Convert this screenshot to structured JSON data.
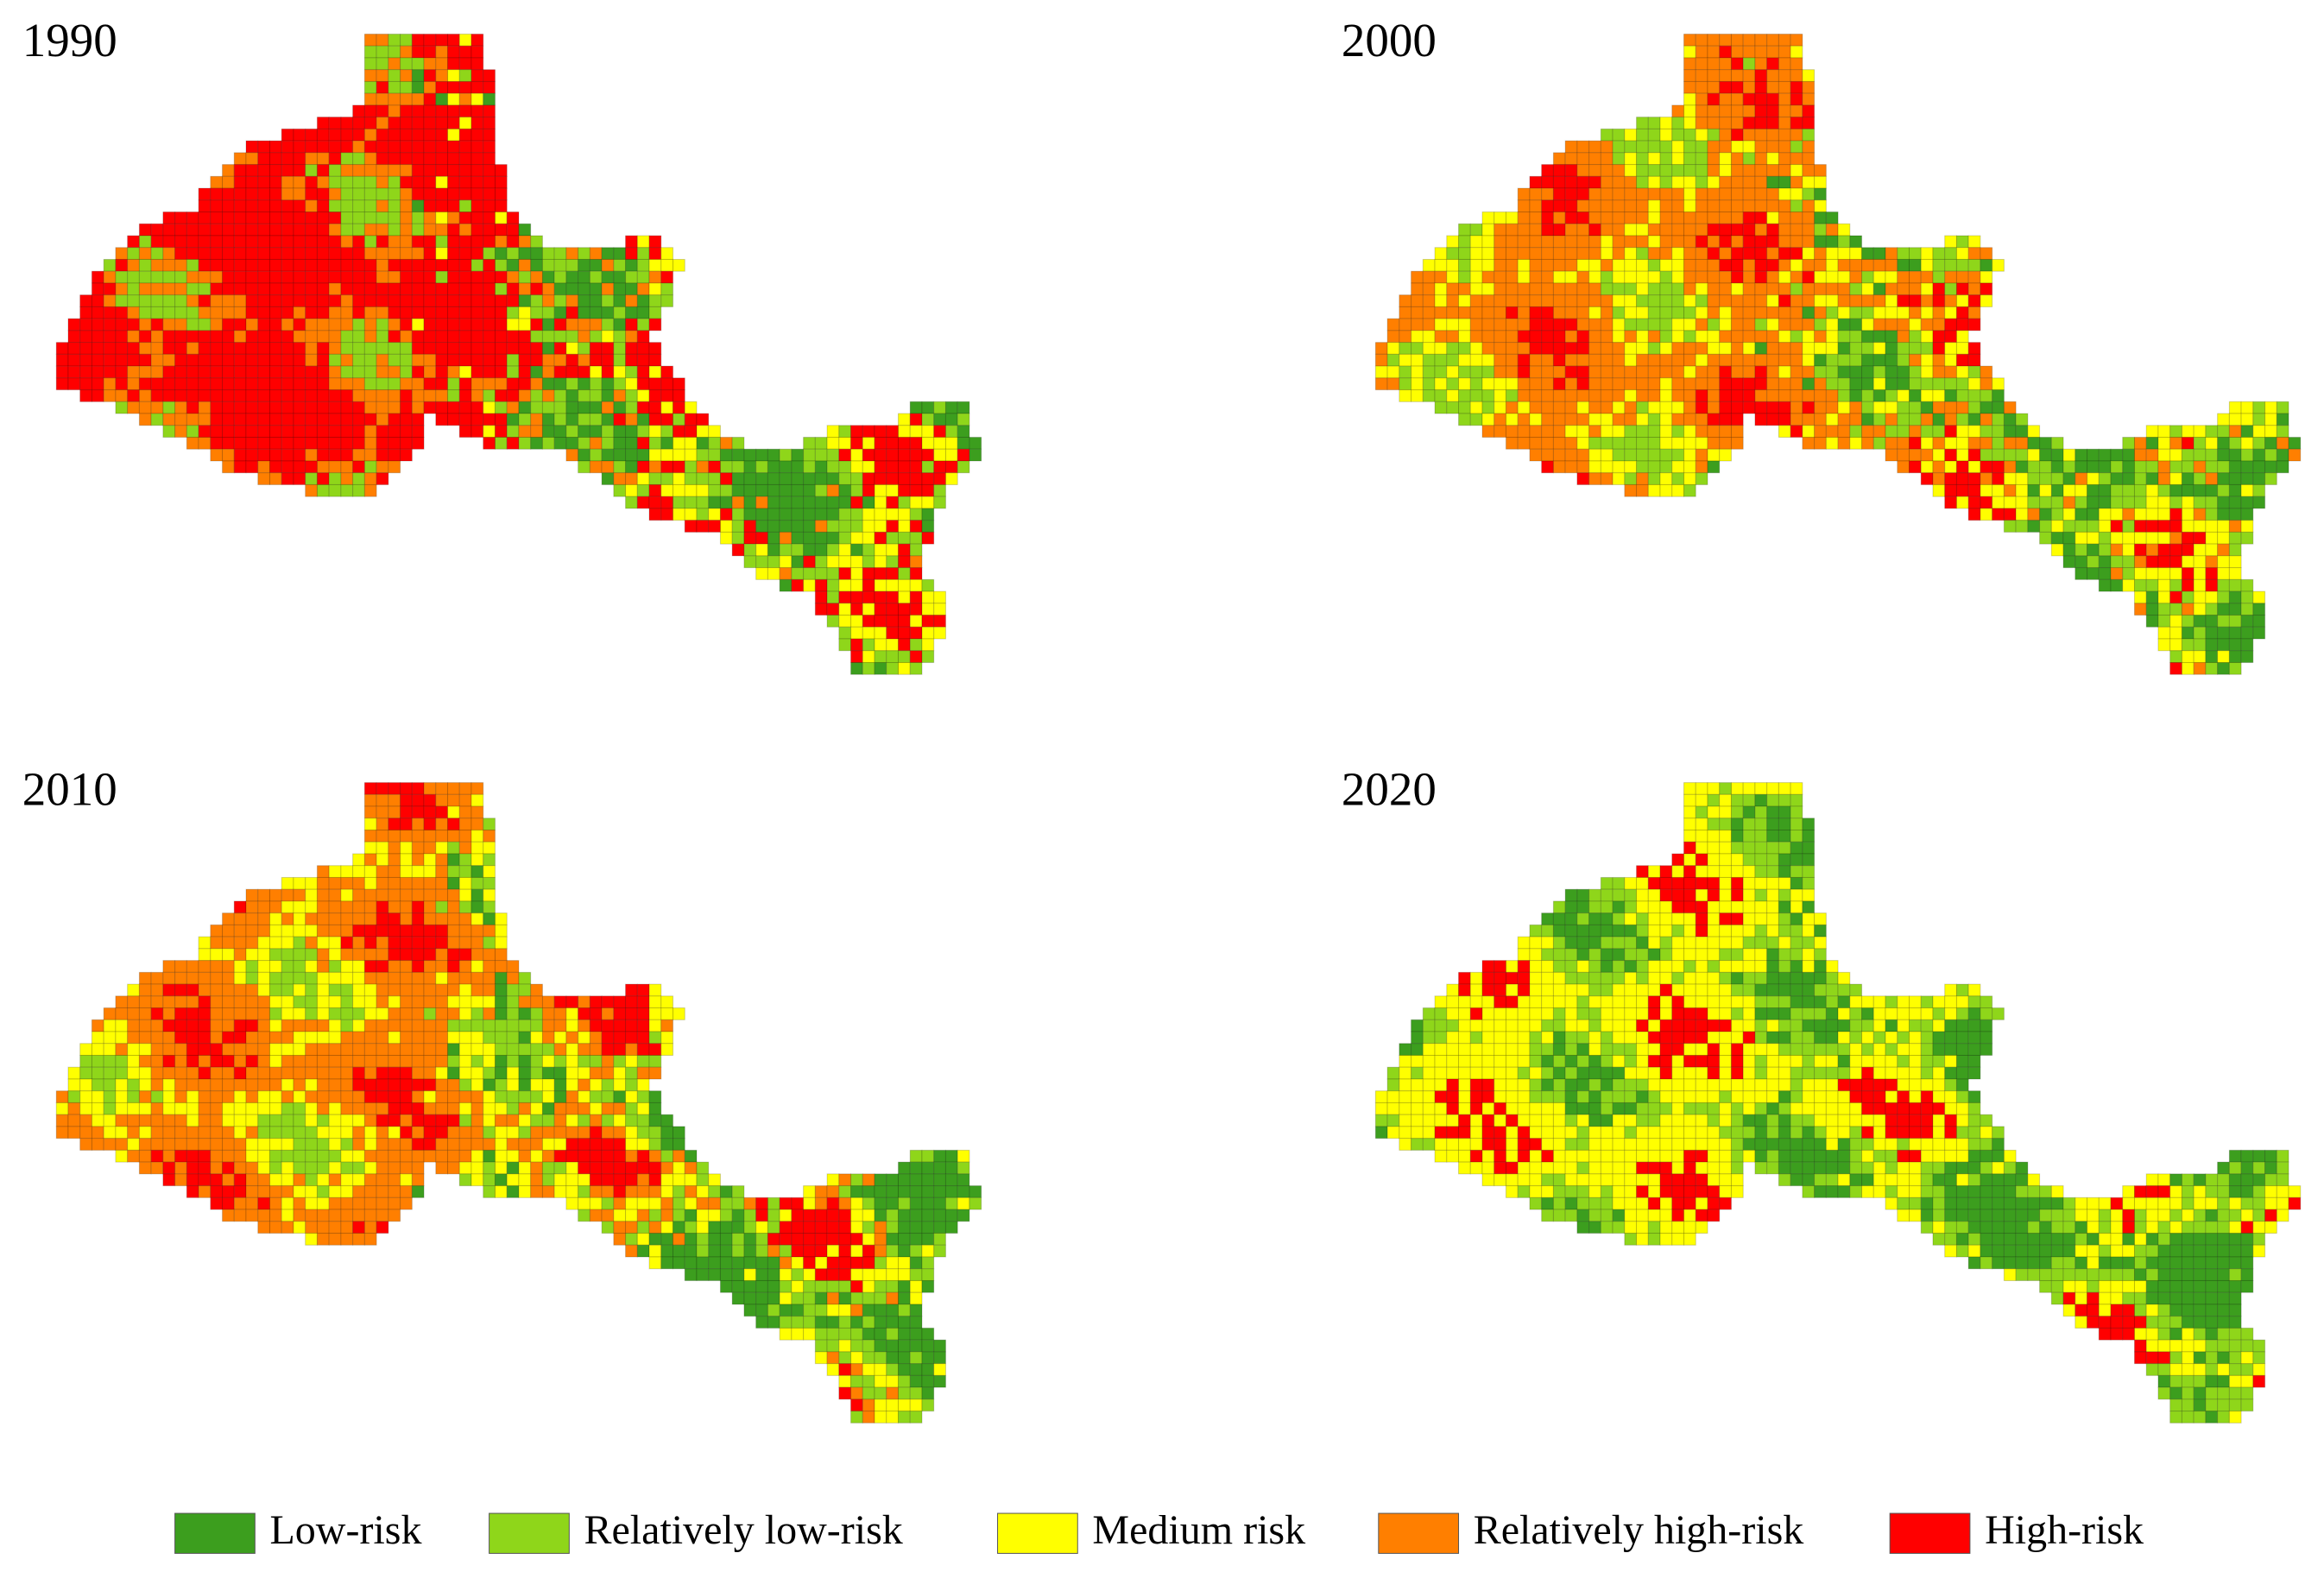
{
  "panels": [
    {
      "label": "1990"
    },
    {
      "label": "2000"
    },
    {
      "label": "2010"
    },
    {
      "label": "2020"
    }
  ],
  "legend": [
    {
      "label": "Low-risk",
      "color": "#3c9e1e"
    },
    {
      "label": "Relatively low-risk",
      "color": "#8fd61a"
    },
    {
      "label": "Medium risk",
      "color": "#ffff00"
    },
    {
      "label": "Relatively high-risk",
      "color": "#ff7f00"
    },
    {
      "label": "High-risk",
      "color": "#ff0000"
    }
  ]
}
